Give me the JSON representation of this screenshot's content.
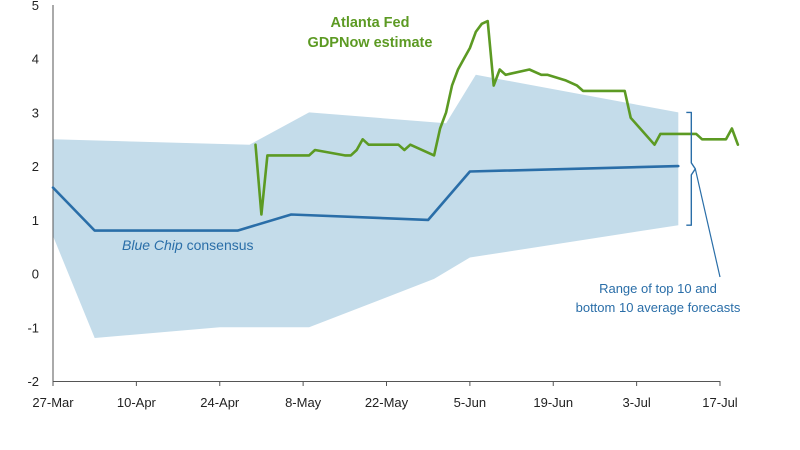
{
  "chart_data": {
    "type": "line",
    "title": "",
    "xlabel": "",
    "ylabel": "",
    "ylim": [
      -2,
      5
    ],
    "yticks": [
      -2,
      -1,
      0,
      1,
      2,
      3,
      4,
      5
    ],
    "xlim": [
      "2024-03-27",
      "2024-07-17"
    ],
    "xticks": [
      {
        "date": "2024-03-27",
        "label": "27-Mar"
      },
      {
        "date": "2024-04-10",
        "label": "10-Apr"
      },
      {
        "date": "2024-04-24",
        "label": "24-Apr"
      },
      {
        "date": "2024-05-08",
        "label": "8-May"
      },
      {
        "date": "2024-05-22",
        "label": "22-May"
      },
      {
        "date": "2024-06-05",
        "label": "5-Jun"
      },
      {
        "date": "2024-06-19",
        "label": "19-Jun"
      },
      {
        "date": "2024-07-03",
        "label": "3-Jul"
      },
      {
        "date": "2024-07-17",
        "label": "17-Jul"
      }
    ],
    "grid": false,
    "series": [
      {
        "name": "Atlanta Fed GDPNow estimate",
        "color": "#5c9a23",
        "points": [
          [
            "2024-04-30",
            2.4
          ],
          [
            "2024-05-01",
            1.1
          ],
          [
            "2024-05-02",
            2.2
          ],
          [
            "2024-05-07",
            2.2
          ],
          [
            "2024-05-09",
            2.2
          ],
          [
            "2024-05-10",
            2.3
          ],
          [
            "2024-05-15",
            2.2
          ],
          [
            "2024-05-16",
            2.2
          ],
          [
            "2024-05-17",
            2.3
          ],
          [
            "2024-05-18",
            2.5
          ],
          [
            "2024-05-19",
            2.4
          ],
          [
            "2024-05-24",
            2.4
          ],
          [
            "2024-05-25",
            2.3
          ],
          [
            "2024-05-26",
            2.4
          ],
          [
            "2024-05-30",
            2.2
          ],
          [
            "2024-05-31",
            2.7
          ],
          [
            "2024-06-01",
            3.0
          ],
          [
            "2024-06-02",
            3.5
          ],
          [
            "2024-06-03",
            3.8
          ],
          [
            "2024-06-04",
            4.0
          ],
          [
            "2024-06-05",
            4.2
          ],
          [
            "2024-06-06",
            4.5
          ],
          [
            "2024-06-07",
            4.65
          ],
          [
            "2024-06-08",
            4.7
          ],
          [
            "2024-06-09",
            3.5
          ],
          [
            "2024-06-10",
            3.8
          ],
          [
            "2024-06-11",
            3.7
          ],
          [
            "2024-06-15",
            3.8
          ],
          [
            "2024-06-17",
            3.7
          ],
          [
            "2024-06-18",
            3.7
          ],
          [
            "2024-06-21",
            3.6
          ],
          [
            "2024-06-23",
            3.5
          ],
          [
            "2024-06-24",
            3.4
          ],
          [
            "2024-06-30",
            3.4
          ],
          [
            "2024-07-01",
            3.4
          ],
          [
            "2024-07-02",
            2.9
          ],
          [
            "2024-07-06",
            2.4
          ],
          [
            "2024-07-07",
            2.6
          ],
          [
            "2024-07-13",
            2.6
          ],
          [
            "2024-07-14",
            2.5
          ],
          [
            "2024-07-18",
            2.5
          ],
          [
            "2024-07-19",
            2.7
          ],
          [
            "2024-07-20",
            2.4
          ]
        ]
      },
      {
        "name": "Blue Chip consensus",
        "color": "#2a6ea8",
        "points": [
          [
            "2024-03-27",
            1.6
          ],
          [
            "2024-04-03",
            0.8
          ],
          [
            "2024-04-27",
            0.8
          ],
          [
            "2024-05-06",
            1.1
          ],
          [
            "2024-05-29",
            1.0
          ],
          [
            "2024-06-05",
            1.9
          ],
          [
            "2024-07-10",
            2.0
          ]
        ]
      }
    ],
    "range_band": {
      "name": "Range of top 10 and bottom 10 average forecasts",
      "color": "#c4dcea",
      "upper": [
        [
          "2024-03-27",
          2.5
        ],
        [
          "2024-04-29",
          2.4
        ],
        [
          "2024-05-09",
          3.0
        ],
        [
          "2024-06-01",
          2.8
        ],
        [
          "2024-06-06",
          3.7
        ],
        [
          "2024-07-10",
          3.0
        ]
      ],
      "lower": [
        [
          "2024-07-10",
          0.9
        ],
        [
          "2024-06-05",
          0.3
        ],
        [
          "2024-05-30",
          -0.1
        ],
        [
          "2024-05-09",
          -1.0
        ],
        [
          "2024-04-24",
          -1.0
        ],
        [
          "2024-04-03",
          -1.2
        ],
        [
          "2024-03-27",
          0.7
        ]
      ]
    },
    "annotations": [
      {
        "lines": [
          "Atlanta Fed",
          "GDPNow estimate"
        ],
        "series": "Atlanta Fed GDPNow estimate"
      },
      {
        "lines": [
          "Blue Chip consensus"
        ],
        "series": "Blue Chip consensus",
        "italic_part": "Blue Chip"
      },
      {
        "lines": [
          "Range of top 10 and",
          "bottom 10 average forecasts"
        ],
        "series": "range"
      }
    ]
  }
}
